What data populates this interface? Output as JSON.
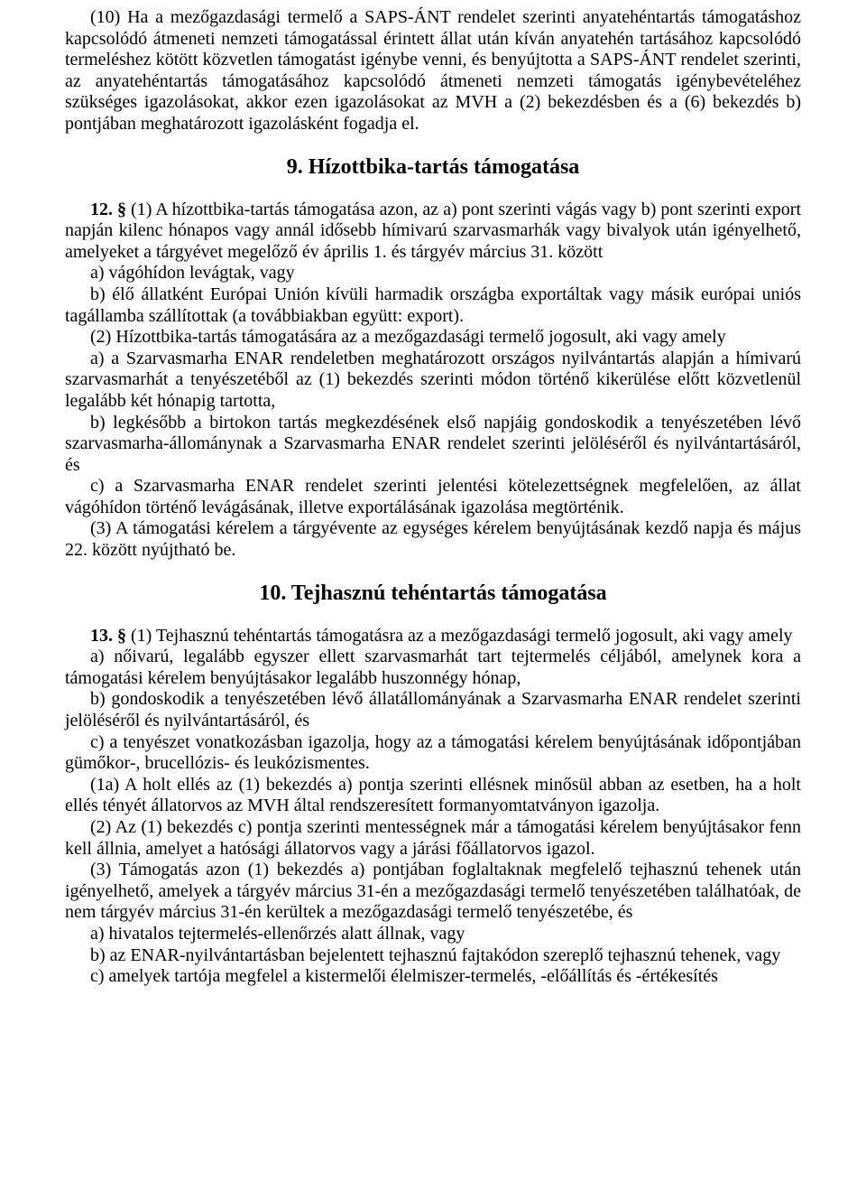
{
  "section10": {
    "para": "(10) Ha a mezőgazdasági termelő a SAPS-ÁNT rendelet szerinti anyatehéntartás támogatáshoz kapcsolódó átmeneti nemzeti támogatással érintett állat után kíván anyatehén tartásához kapcsolódó termeléshez kötött közvetlen támogatást igénybe venni, és benyújtotta a SAPS-ÁNT rendelet szerinti, az anyatehéntartás támogatásához kapcsolódó átmeneti nemzeti támogatás igénybevételéhez szükséges igazolásokat, akkor ezen igazolásokat az MVH a (2) bekezdésben és a (6) bekezdés b) pontjában meghatározott igazolásként fogadja el."
  },
  "heading9": "9. Hízottbika-tartás támogatása",
  "section12": {
    "lead": "12. §",
    "p1": " (1) A hízottbika-tartás támogatása azon, az a) pont szerinti vágás vagy b) pont szerinti export napján kilenc hónapos vagy annál idősebb hímivarú szarvasmarhák vagy bivalyok után igényelhető, amelyeket a tárgyévet megelőző év április 1. és tárgyév március 31. között",
    "a": "a) vágóhídon levágtak, vagy",
    "b": "b) élő állatként Európai Unión kívüli harmadik országba exportáltak vagy másik európai uniós tagállamba szállítottak (a továbbiakban együtt: export).",
    "p2": "(2) Hízottbika-tartás támogatására az a mezőgazdasági termelő jogosult, aki vagy amely",
    "p2a": "a) a Szarvasmarha ENAR rendeletben meghatározott országos nyilvántartás alapján a hímivarú szarvasmarhát a tenyészetéből az (1) bekezdés szerinti módon történő kikerülése előtt közvetlenül legalább két hónapig tartotta,",
    "p2b": "b) legkésőbb a birtokon tartás megkezdésének első napjáig gondoskodik a tenyészetében lévő szarvasmarha-állománynak a Szarvasmarha ENAR rendelet szerinti jelöléséről és nyilvántartásáról, és",
    "p2c": "c) a Szarvasmarha ENAR rendelet szerinti jelentési kötelezettségnek megfelelően, az állat vágóhídon történő levágásának, illetve exportálásának igazolása megtörténik.",
    "p3": "(3) A támogatási kérelem a tárgyévente az egységes kérelem benyújtásának kezdő napja és május 22. között nyújtható be."
  },
  "heading10": "10. Tejhasznú tehéntartás támogatása",
  "section13": {
    "lead": "13. §",
    "p1": " (1) Tejhasznú tehéntartás támogatásra az a mezőgazdasági termelő jogosult, aki vagy amely",
    "a": "a) nőivarú, legalább egyszer ellett szarvasmarhát tart tejtermelés céljából, amelynek kora a támogatási kérelem benyújtásakor legalább huszonnégy hónap,",
    "b": "b) gondoskodik a tenyészetében lévő állatállományának a Szarvasmarha ENAR rendelet szerinti jelöléséről és nyilvántartásáról, és",
    "c": "c) a tenyészet vonatkozásban igazolja, hogy az a támogatási kérelem benyújtásának időpontjában gümőkor-, brucellózis- és leukózismentes.",
    "p1a": "(1a) A holt ellés az (1) bekezdés a) pontja szerinti ellésnek minősül abban az esetben, ha a holt ellés tényét állatorvos az MVH által rendszeresített formanyomtatványon igazolja.",
    "p2": "(2) Az (1) bekezdés c) pontja szerinti mentességnek már a támogatási kérelem benyújtásakor fenn kell állnia, amelyet a hatósági állatorvos vagy a járási főállatorvos igazol.",
    "p3": "(3) Támogatás azon (1) bekezdés a) pontjában foglaltaknak megfelelő tejhasznú tehenek után igényelhető, amelyek a tárgyév március 31-én a mezőgazdasági termelő tenyészetében találhatóak, de nem tárgyév március 31-én kerültek a mezőgazdasági termelő tenyészetébe, és",
    "p3a": "a) hivatalos tejtermelés-ellenőrzés alatt állnak, vagy",
    "p3b": "b) az ENAR-nyilvántartásban bejelentett tejhasznú fajtakódon szereplő tejhasznú tehenek, vagy",
    "p3c": "c) amelyek tartója megfelel a kistermelői élelmiszer-termelés, -előállítás és -értékesítés"
  }
}
